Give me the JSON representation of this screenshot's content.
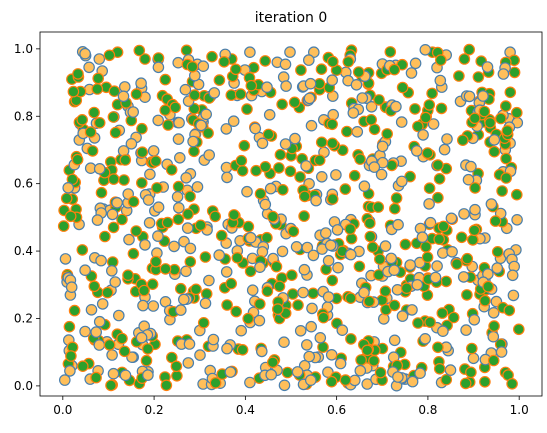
{
  "chart_data": {
    "type": "scatter",
    "title": "iteration 0",
    "xlabel": "",
    "ylabel": "",
    "xlim": [
      -0.05,
      1.05
    ],
    "ylim": [
      -0.03,
      1.05
    ],
    "x_ticks": [
      "0.0",
      "0.2",
      "0.4",
      "0.6",
      "0.8",
      "1.0"
    ],
    "y_ticks": [
      "0.0",
      "0.2",
      "0.4",
      "0.6",
      "0.8",
      "1.0"
    ],
    "grid": false,
    "legend": "none",
    "point_count": 1000,
    "point_distribution": "uniform random over [0,1] x [0,1]",
    "series": [
      {
        "fill": "#ffbf5a",
        "edge": "#4a7fad",
        "description": "orange markers with blue outline"
      },
      {
        "fill": "#2ca02c",
        "edge": "#ff7f0e",
        "description": "green markers with orange outline"
      }
    ],
    "sample_points": [
      [
        0.02,
        0.91
      ],
      [
        0.05,
        0.98
      ],
      [
        0.08,
        0.97
      ],
      [
        0.12,
        0.99
      ],
      [
        0.18,
        0.97
      ],
      [
        0.37,
        0.97
      ],
      [
        0.41,
        0.99
      ],
      [
        0.47,
        0.96
      ],
      [
        0.55,
        0.99
      ],
      [
        0.62,
        0.93
      ],
      [
        0.81,
        0.99
      ],
      [
        0.88,
        0.97
      ],
      [
        0.98,
        0.99
      ],
      [
        0.99,
        0.93
      ],
      [
        0.03,
        0.68
      ],
      [
        0.09,
        0.61
      ],
      [
        0.14,
        0.52
      ],
      [
        0.22,
        0.59
      ],
      [
        0.31,
        0.67
      ],
      [
        0.44,
        0.55
      ],
      [
        0.52,
        0.62
      ],
      [
        0.67,
        0.57
      ],
      [
        0.79,
        0.68
      ],
      [
        0.91,
        0.63
      ],
      [
        0.98,
        0.72
      ],
      [
        0.01,
        0.33
      ],
      [
        0.07,
        0.38
      ],
      [
        0.16,
        0.28
      ],
      [
        0.27,
        0.34
      ],
      [
        0.36,
        0.24
      ],
      [
        0.48,
        0.32
      ],
      [
        0.58,
        0.21
      ],
      [
        0.71,
        0.26
      ],
      [
        0.84,
        0.31
      ],
      [
        0.95,
        0.25
      ],
      [
        0.02,
        0.06
      ],
      [
        0.06,
        0.02
      ],
      [
        0.13,
        0.04
      ],
      [
        0.25,
        0.03
      ],
      [
        0.41,
        0.01
      ],
      [
        0.53,
        0.06
      ],
      [
        0.63,
        0.01
      ],
      [
        0.75,
        0.02
      ],
      [
        0.83,
        0.01
      ],
      [
        0.97,
        0.04
      ]
    ],
    "colors": {
      "axis": "#000000",
      "background": "#ffffff"
    }
  }
}
